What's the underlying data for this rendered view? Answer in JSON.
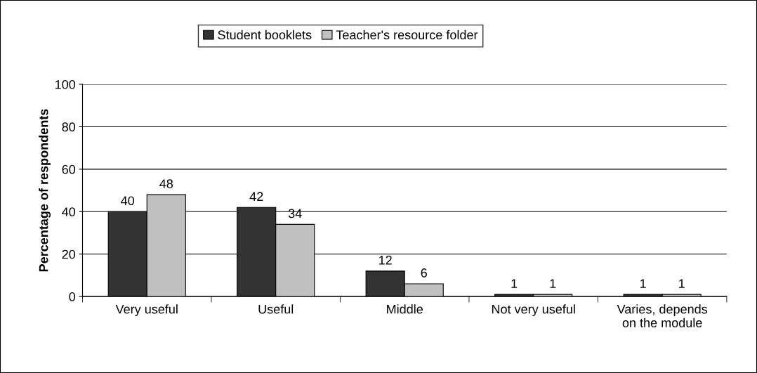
{
  "chart_data": {
    "type": "bar",
    "ylabel": "Percentage of respondents",
    "categories": [
      "Very useful",
      "Useful",
      "Middle",
      "Not very useful",
      "Varies, depends\non the module"
    ],
    "series": [
      {
        "name": "Student booklets",
        "color": "#333333",
        "values": [
          40,
          42,
          12,
          1,
          1
        ]
      },
      {
        "name": "Teacher's resource folder",
        "color": "#c0c0c0",
        "values": [
          48,
          34,
          6,
          1,
          1
        ]
      }
    ],
    "ylim": [
      0,
      100
    ],
    "yticks": [
      0,
      20,
      40,
      60,
      80,
      100
    ],
    "grid": "y",
    "legend": "top",
    "data_labels": true
  }
}
